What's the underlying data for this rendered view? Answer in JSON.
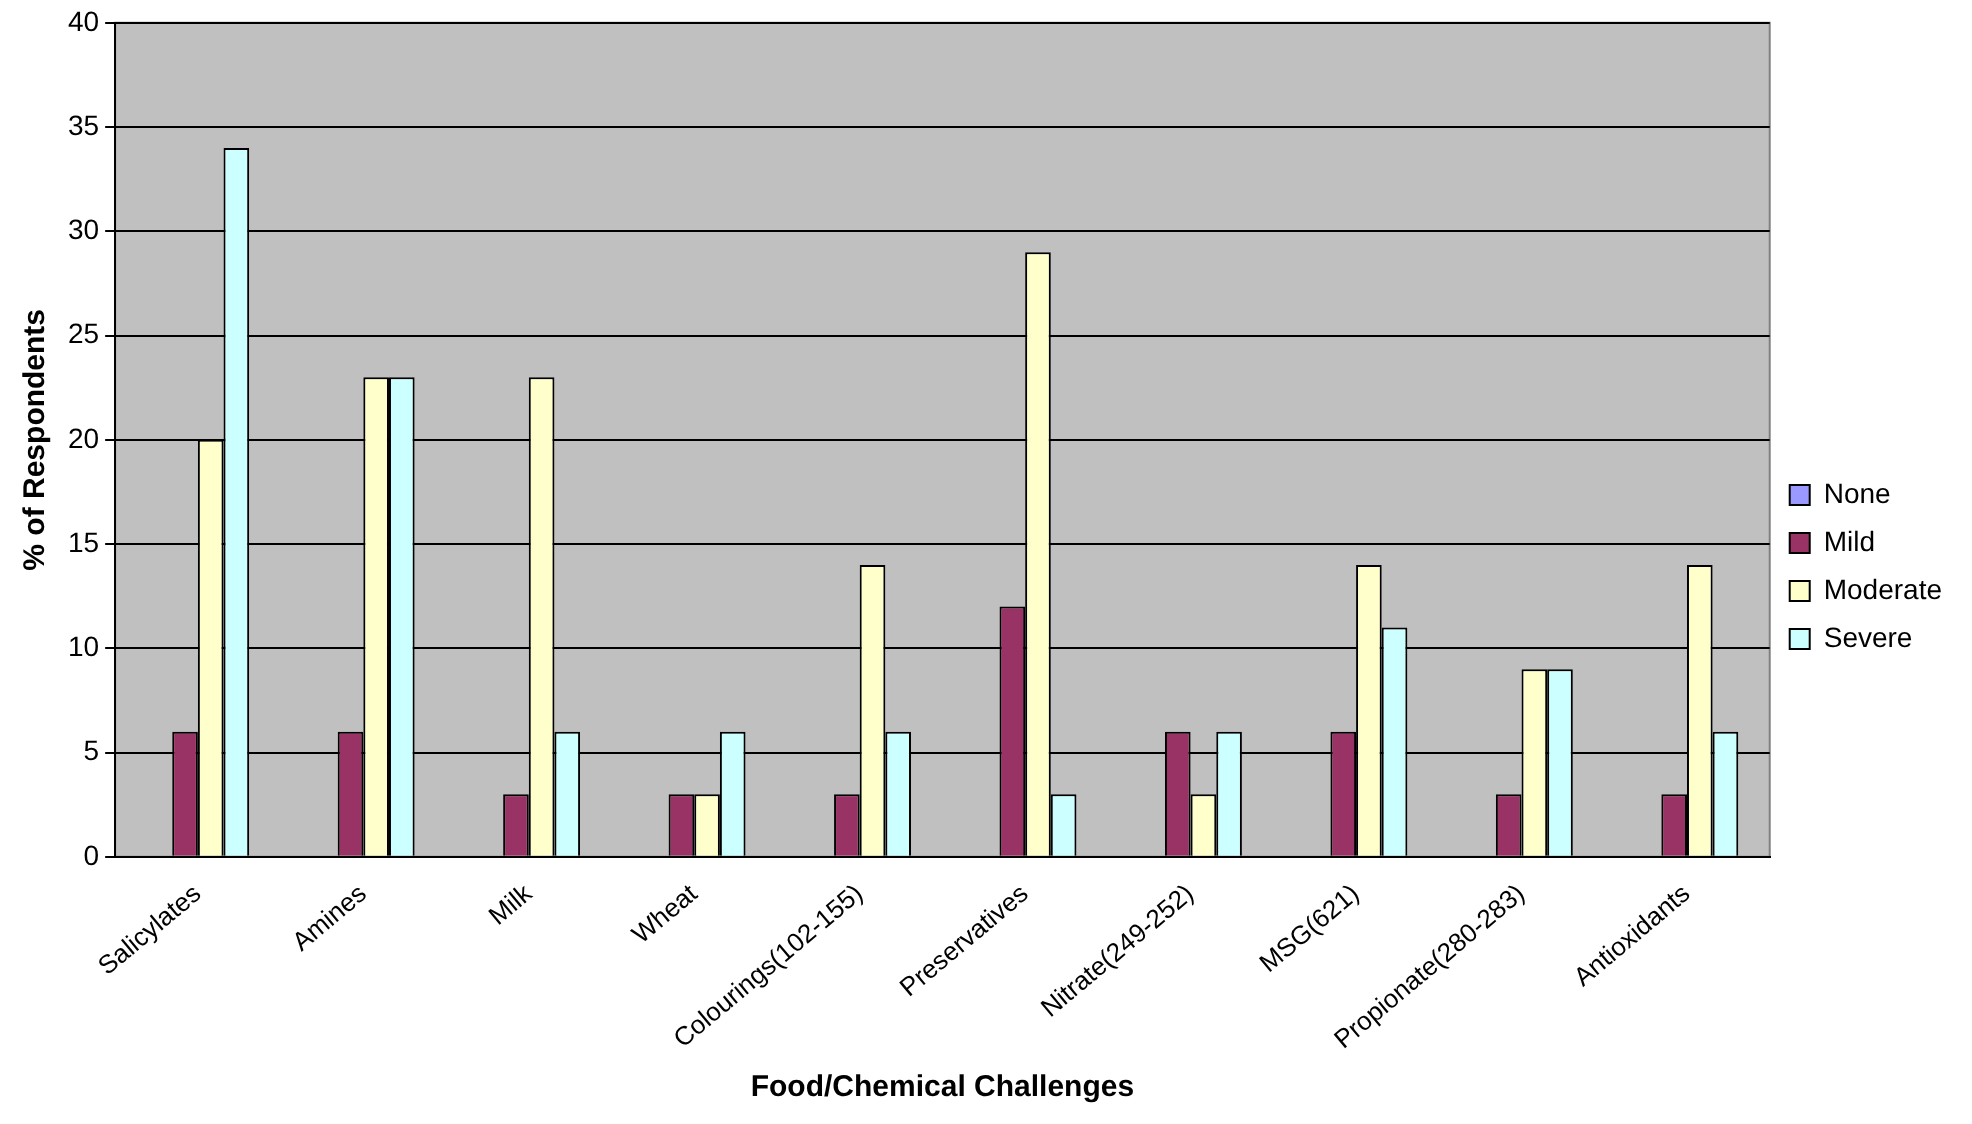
{
  "chart_data": {
    "type": "bar",
    "xlabel": "Food/Chemical Challenges",
    "ylabel": "% of Respondents",
    "categories": [
      "Salicylates",
      "Amines",
      "Milk",
      "Wheat",
      "Colourings(102-155)",
      "Preservatives",
      "Nitrate(249-252)",
      "MSG(621)",
      "Propionate(280-283)",
      "Antioxidants"
    ],
    "series": [
      {
        "name": "None",
        "color": "#9999ff",
        "values": [
          0,
          0,
          0,
          0,
          0,
          0,
          0,
          0,
          0,
          0
        ]
      },
      {
        "name": "Mild",
        "color": "#993366",
        "values": [
          6,
          6,
          3,
          3,
          3,
          12,
          6,
          6,
          3,
          3
        ]
      },
      {
        "name": "Moderate",
        "color": "#ffffcc",
        "values": [
          20,
          23,
          23,
          3,
          14,
          29,
          3,
          14,
          9,
          14
        ]
      },
      {
        "name": "Severe",
        "color": "#ccffff",
        "values": [
          34,
          23,
          6,
          6,
          6,
          3,
          6,
          11,
          9,
          6
        ]
      }
    ],
    "ylim": [
      0,
      40
    ],
    "yticks": [
      0,
      5,
      10,
      15,
      20,
      25,
      30,
      35,
      40
    ],
    "grid": "y",
    "legend": "right"
  }
}
